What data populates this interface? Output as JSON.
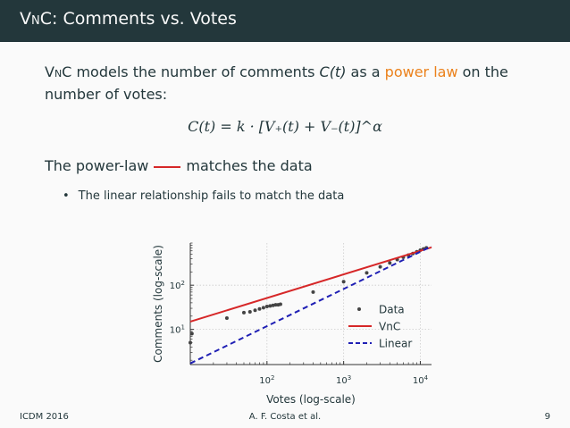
{
  "slide": {
    "title_prefix": "VnC",
    "title_rest": ": Comments vs. Votes",
    "para_prefix": "VnC",
    "para_mid": " models the number of comments ",
    "para_ct": "C(t)",
    "para_mid2": " as a ",
    "para_highlight": "power law",
    "para_end": " on the number of votes:",
    "formula": "C(t) = k · [V₊(t) + V₋(t)]^α",
    "powerlaw_before": "The power-law",
    "powerlaw_after": "matches the data",
    "bullet_marker": "•",
    "bullet_text": "The linear relationship fails to match the data"
  },
  "footer": {
    "left": "ICDM 2016",
    "center": "A. F. Costa et al.",
    "right": "9"
  },
  "colors": {
    "header_bg": "#23373b",
    "accent": "#eb811b",
    "vnc_line": "#d62728",
    "linear_line": "#1f1fb4",
    "data_points": "#444444"
  },
  "chart_data": {
    "type": "scatter",
    "xlabel": "Votes (log-scale)",
    "ylabel": "Comments (log-scale)",
    "x_scale": "log",
    "y_scale": "log",
    "xlim": [
      10,
      14000
    ],
    "ylim": [
      1.6,
      900
    ],
    "x_ticks": [
      {
        "value": 100,
        "base": "10",
        "exp": "2"
      },
      {
        "value": 1000,
        "base": "10",
        "exp": "3"
      },
      {
        "value": 10000,
        "base": "10",
        "exp": "4"
      }
    ],
    "y_ticks": [
      {
        "value": 10,
        "base": "10",
        "exp": "1"
      },
      {
        "value": 100,
        "base": "10",
        "exp": "2"
      }
    ],
    "grid": true,
    "legend_position": "lower-right",
    "series": [
      {
        "name": "Data",
        "style": "points",
        "x": [
          10,
          10.5,
          30,
          50,
          60,
          70,
          80,
          90,
          100,
          110,
          120,
          130,
          140,
          150,
          400,
          1000,
          2000,
          3000,
          4000,
          5000,
          6000,
          7000,
          8000,
          9000,
          10000,
          11000,
          12000
        ],
        "y": [
          5,
          8,
          18,
          24,
          25,
          27,
          29,
          31,
          33,
          34,
          35,
          36,
          36,
          37,
          70,
          120,
          190,
          260,
          320,
          380,
          430,
          480,
          520,
          570,
          620,
          660,
          700
        ]
      },
      {
        "name": "VnC",
        "style": "line",
        "x": [
          10,
          14000
        ],
        "y": [
          15,
          720
        ]
      },
      {
        "name": "Linear",
        "style": "dashed",
        "x": [
          10,
          14000
        ],
        "y": [
          1.7,
          760
        ]
      }
    ]
  }
}
